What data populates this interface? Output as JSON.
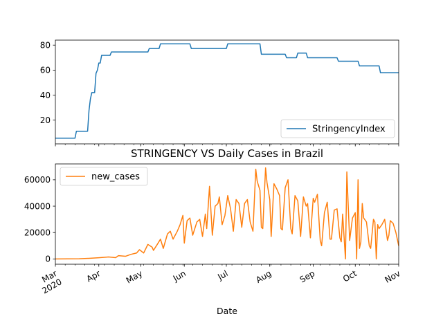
{
  "chart_data": [
    {
      "type": "line",
      "series": [
        {
          "name": "StringencyIndex",
          "color": "#1f77b4",
          "points": [
            [
              "2020-03-01",
              5.6
            ],
            [
              "2020-03-15",
              5.6
            ],
            [
              "2020-03-16",
              11.1
            ],
            [
              "2020-03-24",
              11.1
            ],
            [
              "2020-03-25",
              27.8
            ],
            [
              "2020-03-26",
              37.0
            ],
            [
              "2020-03-27",
              42.0
            ],
            [
              "2020-03-29",
              42.0
            ],
            [
              "2020-03-30",
              57.4
            ],
            [
              "2020-03-31",
              60.0
            ],
            [
              "2020-04-01",
              65.7
            ],
            [
              "2020-04-02",
              65.7
            ],
            [
              "2020-04-03",
              71.8
            ],
            [
              "2020-04-09",
              71.8
            ],
            [
              "2020-04-10",
              74.5
            ],
            [
              "2020-05-06",
              74.5
            ],
            [
              "2020-05-07",
              77.3
            ],
            [
              "2020-05-14",
              77.3
            ],
            [
              "2020-05-15",
              81.0
            ],
            [
              "2020-06-05",
              81.0
            ],
            [
              "2020-06-06",
              77.3
            ],
            [
              "2020-07-01",
              77.3
            ],
            [
              "2020-07-02",
              81.0
            ],
            [
              "2020-07-25",
              81.0
            ],
            [
              "2020-07-26",
              72.7
            ],
            [
              "2020-08-12",
              72.7
            ],
            [
              "2020-08-13",
              69.9
            ],
            [
              "2020-08-20",
              69.9
            ],
            [
              "2020-08-21",
              73.6
            ],
            [
              "2020-08-27",
              73.6
            ],
            [
              "2020-08-28",
              69.9
            ],
            [
              "2020-09-18",
              69.9
            ],
            [
              "2020-09-19",
              67.1
            ],
            [
              "2020-10-03",
              67.1
            ],
            [
              "2020-10-04",
              63.4
            ],
            [
              "2020-10-18",
              63.4
            ],
            [
              "2020-10-19",
              57.9
            ],
            [
              "2020-11-01",
              57.9
            ]
          ]
        }
      ],
      "xlim": [
        "2020-03-01",
        "2020-11-01"
      ],
      "ylim": [
        1,
        84
      ],
      "yticks": [
        20,
        40,
        60,
        80
      ],
      "grid": false,
      "legend_position": "lower-right"
    },
    {
      "type": "line",
      "title": "STRINGENCY VS Daily Cases in Brazil",
      "xlabel": "Date",
      "series": [
        {
          "name": "new_cases",
          "color": "#ff7f0e",
          "points": [
            [
              "2020-03-01",
              0
            ],
            [
              "2020-03-10",
              50
            ],
            [
              "2020-03-18",
              150
            ],
            [
              "2020-03-22",
              300
            ],
            [
              "2020-03-26",
              500
            ],
            [
              "2020-04-01",
              900
            ],
            [
              "2020-04-08",
              1500
            ],
            [
              "2020-04-13",
              1000
            ],
            [
              "2020-04-15",
              2500
            ],
            [
              "2020-04-20",
              2000
            ],
            [
              "2020-04-24",
              3500
            ],
            [
              "2020-04-28",
              4500
            ],
            [
              "2020-04-30",
              7000
            ],
            [
              "2020-05-03",
              4500
            ],
            [
              "2020-05-06",
              11000
            ],
            [
              "2020-05-09",
              9000
            ],
            [
              "2020-05-10",
              6500
            ],
            [
              "2020-05-13",
              11500
            ],
            [
              "2020-05-15",
              15000
            ],
            [
              "2020-05-17",
              8000
            ],
            [
              "2020-05-20",
              19000
            ],
            [
              "2020-05-22",
              21000
            ],
            [
              "2020-05-24",
              15000
            ],
            [
              "2020-05-27",
              21000
            ],
            [
              "2020-05-29",
              26000
            ],
            [
              "2020-05-31",
              33000
            ],
            [
              "2020-06-01",
              12000
            ],
            [
              "2020-06-03",
              29000
            ],
            [
              "2020-06-05",
              31000
            ],
            [
              "2020-06-07",
              18000
            ],
            [
              "2020-06-10",
              28000
            ],
            [
              "2020-06-12",
              30000
            ],
            [
              "2020-06-14",
              17000
            ],
            [
              "2020-06-16",
              34000
            ],
            [
              "2020-06-17",
              23000
            ],
            [
              "2020-06-19",
              55000
            ],
            [
              "2020-06-21",
              18000
            ],
            [
              "2020-06-23",
              40000
            ],
            [
              "2020-06-25",
              42000
            ],
            [
              "2020-06-26",
              47000
            ],
            [
              "2020-06-28",
              26000
            ],
            [
              "2020-06-30",
              33000
            ],
            [
              "2020-07-02",
              48000
            ],
            [
              "2020-07-04",
              38000
            ],
            [
              "2020-07-06",
              21000
            ],
            [
              "2020-07-08",
              45000
            ],
            [
              "2020-07-10",
              42000
            ],
            [
              "2020-07-12",
              24000
            ],
            [
              "2020-07-14",
              42000
            ],
            [
              "2020-07-16",
              45000
            ],
            [
              "2020-07-18",
              28000
            ],
            [
              "2020-07-20",
              21000
            ],
            [
              "2020-07-22",
              68000
            ],
            [
              "2020-07-23",
              59000
            ],
            [
              "2020-07-25",
              52000
            ],
            [
              "2020-07-26",
              24000
            ],
            [
              "2020-07-27",
              23000
            ],
            [
              "2020-07-29",
              69000
            ],
            [
              "2020-07-30",
              58000
            ],
            [
              "2020-08-01",
              45000
            ],
            [
              "2020-08-02",
              17000
            ],
            [
              "2020-08-04",
              57000
            ],
            [
              "2020-08-06",
              53000
            ],
            [
              "2020-08-08",
              48000
            ],
            [
              "2020-08-09",
              23000
            ],
            [
              "2020-08-10",
              22000
            ],
            [
              "2020-08-12",
              54000
            ],
            [
              "2020-08-14",
              60000
            ],
            [
              "2020-08-16",
              23000
            ],
            [
              "2020-08-17",
              19000
            ],
            [
              "2020-08-19",
              48000
            ],
            [
              "2020-08-21",
              44000
            ],
            [
              "2020-08-23",
              17000
            ],
            [
              "2020-08-25",
              47000
            ],
            [
              "2020-08-27",
              40000
            ],
            [
              "2020-08-28",
              42000
            ],
            [
              "2020-08-30",
              16000
            ],
            [
              "2020-09-01",
              46000
            ],
            [
              "2020-09-02",
              43000
            ],
            [
              "2020-09-04",
              49000
            ],
            [
              "2020-09-06",
              14000
            ],
            [
              "2020-09-07",
              10000
            ],
            [
              "2020-09-09",
              35000
            ],
            [
              "2020-09-11",
              43000
            ],
            [
              "2020-09-13",
              15000
            ],
            [
              "2020-09-14",
              15000
            ],
            [
              "2020-09-16",
              37000
            ],
            [
              "2020-09-18",
              38000
            ],
            [
              "2020-09-20",
              16000
            ],
            [
              "2020-09-21",
              13000
            ],
            [
              "2020-09-22",
              34000
            ],
            [
              "2020-09-23",
              17000
            ],
            [
              "2020-09-24",
              0
            ],
            [
              "2020-09-25",
              66000
            ],
            [
              "2020-09-27",
              14000
            ],
            [
              "2020-09-29",
              31000
            ],
            [
              "2020-10-01",
              35000
            ],
            [
              "2020-10-02",
              0
            ],
            [
              "2020-10-03",
              60000
            ],
            [
              "2020-10-04",
              8000
            ],
            [
              "2020-10-05",
              13000
            ],
            [
              "2020-10-06",
              42000
            ],
            [
              "2020-10-07",
              31000
            ],
            [
              "2020-10-09",
              28000
            ],
            [
              "2020-10-11",
              10000
            ],
            [
              "2020-10-12",
              8000
            ],
            [
              "2020-10-14",
              30000
            ],
            [
              "2020-10-15",
              28000
            ],
            [
              "2020-10-16",
              0
            ],
            [
              "2020-10-17",
              26000
            ],
            [
              "2020-10-18",
              23000
            ],
            [
              "2020-10-20",
              26000
            ],
            [
              "2020-10-22",
              30000
            ],
            [
              "2020-10-24",
              14000
            ],
            [
              "2020-10-25",
              18000
            ],
            [
              "2020-10-26",
              29000
            ],
            [
              "2020-10-28",
              27000
            ],
            [
              "2020-10-30",
              20000
            ],
            [
              "2020-11-01",
              10000
            ]
          ]
        }
      ],
      "xlim": [
        "2020-03-01",
        "2020-11-01"
      ],
      "ylim": [
        -4000,
        72000
      ],
      "yticks": [
        0,
        20000,
        40000,
        60000
      ],
      "xticks": [
        {
          "date": "2020-03-01",
          "label": "Mar",
          "label2": "2020"
        },
        {
          "date": "2020-04-01",
          "label": "Apr"
        },
        {
          "date": "2020-05-01",
          "label": "May"
        },
        {
          "date": "2020-06-01",
          "label": "Jun"
        },
        {
          "date": "2020-07-01",
          "label": "Jul"
        },
        {
          "date": "2020-08-01",
          "label": "Aug"
        },
        {
          "date": "2020-09-01",
          "label": "Sep"
        },
        {
          "date": "2020-10-01",
          "label": "Oct"
        },
        {
          "date": "2020-11-01",
          "label": "Nov"
        }
      ],
      "grid": false,
      "legend_position": "upper-left"
    }
  ]
}
